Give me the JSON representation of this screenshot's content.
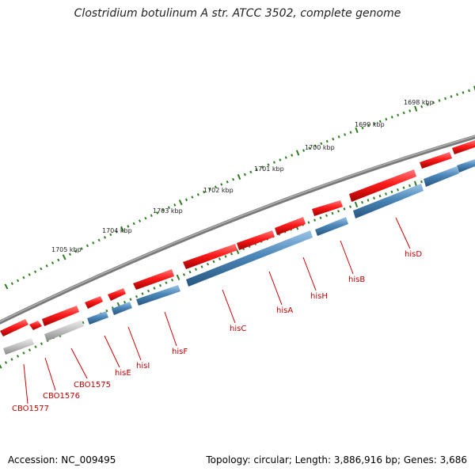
{
  "title": "Clostridium botulinum A str. ATCC 3502, complete genome",
  "footer": {
    "accession": "Accession: NC_009495",
    "summary": "Topology: circular; Length: 3,886,916 bp; Genes: 3,686"
  },
  "colors": {
    "backbone": "#7a7a7a",
    "forward_gene": "#e8141b",
    "cds_bar": "#4a86b8",
    "gray_gene": "#b8b8b8",
    "tick": "#2e7d1f",
    "label": "#c00000"
  },
  "scale": {
    "ticks": [
      {
        "label": "1698 kbp"
      },
      {
        "label": "1699 kbp"
      },
      {
        "label": "1700 kbp"
      },
      {
        "label": "1701 kbp"
      },
      {
        "label": "1702 kbp"
      },
      {
        "label": "1703 kbp"
      },
      {
        "label": "1704 kbp"
      },
      {
        "label": "1705 kbp"
      }
    ]
  },
  "genes": [
    {
      "label": "CBO1577"
    },
    {
      "label": "CBO1576"
    },
    {
      "label": "CBO1575"
    },
    {
      "label": "hisE"
    },
    {
      "label": "hisI"
    },
    {
      "label": "hisF"
    },
    {
      "label": "hisC"
    },
    {
      "label": "hisA"
    },
    {
      "label": "hisH"
    },
    {
      "label": "hisB"
    },
    {
      "label": "hisD"
    }
  ]
}
